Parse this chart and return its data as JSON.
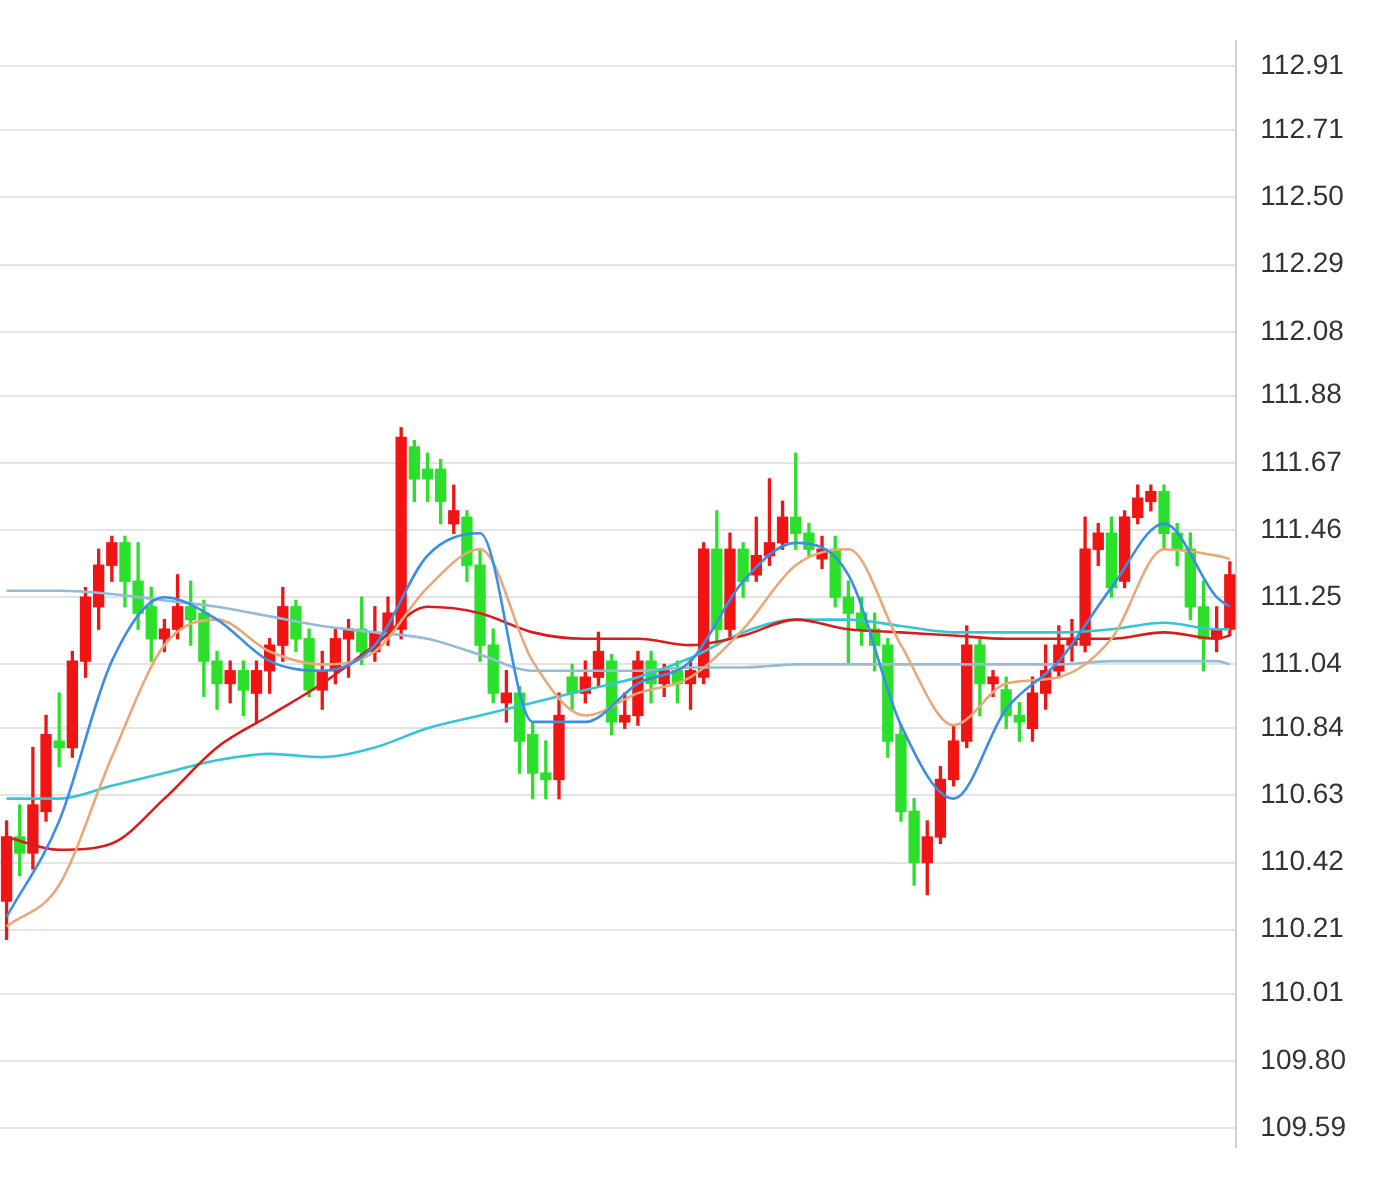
{
  "chart_data": {
    "type": "candlestick",
    "categories": [
      null,
      null,
      null,
      null,
      null,
      null,
      null,
      null,
      null,
      null,
      null,
      null,
      null,
      null,
      null,
      null,
      null,
      null,
      null,
      null,
      null,
      null,
      null,
      null,
      null,
      null,
      null,
      null,
      null,
      null,
      null,
      null,
      null,
      null,
      null,
      null,
      null,
      null,
      null,
      null,
      null,
      null,
      null,
      null,
      null,
      null,
      null,
      null,
      null,
      null,
      null,
      null,
      null,
      null,
      null,
      null,
      null,
      null,
      null,
      null,
      null,
      null,
      null,
      null,
      null,
      null,
      null,
      null,
      null,
      null,
      null,
      null,
      null,
      null,
      null,
      null,
      null,
      null,
      null,
      null,
      null,
      null,
      null,
      null,
      null,
      null,
      null,
      null,
      null,
      null,
      null,
      null,
      null,
      null
    ],
    "ohlc": [
      [
        110.3,
        110.55,
        110.18,
        110.5
      ],
      [
        110.5,
        110.6,
        110.38,
        110.45
      ],
      [
        110.45,
        110.78,
        110.4,
        110.6
      ],
      [
        110.58,
        110.88,
        110.55,
        110.82
      ],
      [
        110.8,
        110.95,
        110.72,
        110.78
      ],
      [
        110.78,
        111.08,
        110.75,
        111.05
      ],
      [
        111.05,
        111.28,
        111.0,
        111.25
      ],
      [
        111.22,
        111.4,
        111.15,
        111.35
      ],
      [
        111.35,
        111.44,
        111.3,
        111.42
      ],
      [
        111.42,
        111.44,
        111.22,
        111.3
      ],
      [
        111.3,
        111.42,
        111.15,
        111.2
      ],
      [
        111.22,
        111.28,
        111.05,
        111.12
      ],
      [
        111.12,
        111.18,
        111.08,
        111.15
      ],
      [
        111.15,
        111.32,
        111.12,
        111.22
      ],
      [
        111.22,
        111.3,
        111.1,
        111.18
      ],
      [
        111.2,
        111.24,
        110.94,
        111.05
      ],
      [
        111.05,
        111.08,
        110.9,
        110.98
      ],
      [
        110.98,
        111.05,
        110.92,
        111.02
      ],
      [
        111.02,
        111.05,
        110.88,
        110.96
      ],
      [
        110.95,
        111.05,
        110.86,
        111.02
      ],
      [
        111.02,
        111.12,
        110.95,
        111.1
      ],
      [
        111.1,
        111.28,
        111.05,
        111.22
      ],
      [
        111.22,
        111.24,
        111.08,
        111.12
      ],
      [
        111.12,
        111.15,
        110.94,
        110.96
      ],
      [
        110.96,
        111.08,
        110.9,
        111.02
      ],
      [
        111.02,
        111.15,
        110.98,
        111.12
      ],
      [
        111.12,
        111.18,
        111.0,
        111.15
      ],
      [
        111.15,
        111.25,
        111.04,
        111.08
      ],
      [
        111.08,
        111.22,
        111.05,
        111.14
      ],
      [
        111.14,
        111.25,
        111.1,
        111.2
      ],
      [
        111.15,
        111.78,
        111.12,
        111.75
      ],
      [
        111.72,
        111.74,
        111.55,
        111.62
      ],
      [
        111.65,
        111.7,
        111.55,
        111.62
      ],
      [
        111.65,
        111.68,
        111.48,
        111.55
      ],
      [
        111.48,
        111.6,
        111.45,
        111.52
      ],
      [
        111.5,
        111.52,
        111.3,
        111.35
      ],
      [
        111.35,
        111.4,
        111.05,
        111.1
      ],
      [
        111.1,
        111.15,
        110.92,
        110.95
      ],
      [
        110.92,
        111.02,
        110.86,
        110.95
      ],
      [
        110.95,
        110.97,
        110.7,
        110.8
      ],
      [
        110.82,
        110.86,
        110.62,
        110.7
      ],
      [
        110.7,
        110.8,
        110.62,
        110.68
      ],
      [
        110.68,
        110.95,
        110.62,
        110.88
      ],
      [
        111.0,
        111.04,
        110.9,
        110.95
      ],
      [
        110.95,
        111.05,
        110.92,
        111.0
      ],
      [
        111.0,
        111.14,
        110.97,
        111.08
      ],
      [
        111.05,
        111.07,
        110.82,
        110.86
      ],
      [
        110.86,
        110.95,
        110.84,
        110.88
      ],
      [
        110.88,
        111.08,
        110.85,
        111.05
      ],
      [
        111.05,
        111.08,
        110.92,
        110.98
      ],
      [
        110.98,
        111.04,
        110.94,
        111.02
      ],
      [
        111.02,
        111.05,
        110.92,
        110.98
      ],
      [
        110.98,
        111.06,
        110.9,
        111.02
      ],
      [
        111.0,
        111.42,
        110.98,
        111.4
      ],
      [
        111.4,
        111.52,
        111.1,
        111.15
      ],
      [
        111.15,
        111.45,
        111.12,
        111.4
      ],
      [
        111.4,
        111.42,
        111.25,
        111.3
      ],
      [
        111.32,
        111.5,
        111.3,
        111.38
      ],
      [
        111.38,
        111.62,
        111.35,
        111.42
      ],
      [
        111.42,
        111.55,
        111.4,
        111.5
      ],
      [
        111.5,
        111.7,
        111.4,
        111.45
      ],
      [
        111.45,
        111.48,
        111.38,
        111.4
      ],
      [
        111.37,
        111.44,
        111.34,
        111.4
      ],
      [
        111.4,
        111.44,
        111.22,
        111.25
      ],
      [
        111.25,
        111.3,
        111.04,
        111.2
      ],
      [
        111.2,
        111.25,
        111.1,
        111.15
      ],
      [
        111.15,
        111.2,
        111.02,
        111.1
      ],
      [
        111.1,
        111.12,
        110.75,
        110.8
      ],
      [
        110.82,
        110.85,
        110.55,
        110.58
      ],
      [
        110.58,
        110.62,
        110.35,
        110.42
      ],
      [
        110.42,
        110.55,
        110.32,
        110.5
      ],
      [
        110.5,
        110.72,
        110.48,
        110.68
      ],
      [
        110.68,
        110.85,
        110.66,
        110.8
      ],
      [
        110.8,
        111.16,
        110.78,
        111.1
      ],
      [
        111.1,
        111.12,
        110.88,
        110.98
      ],
      [
        110.98,
        111.02,
        110.94,
        111.0
      ],
      [
        110.96,
        111.0,
        110.84,
        110.88
      ],
      [
        110.88,
        110.92,
        110.8,
        110.86
      ],
      [
        110.84,
        111.0,
        110.8,
        110.95
      ],
      [
        110.95,
        111.1,
        110.9,
        111.02
      ],
      [
        111.02,
        111.16,
        111.0,
        111.1
      ],
      [
        111.1,
        111.18,
        111.05,
        111.12
      ],
      [
        111.1,
        111.5,
        111.08,
        111.4
      ],
      [
        111.4,
        111.48,
        111.35,
        111.45
      ],
      [
        111.45,
        111.5,
        111.25,
        111.28
      ],
      [
        111.3,
        111.52,
        111.28,
        111.5
      ],
      [
        111.5,
        111.6,
        111.48,
        111.56
      ],
      [
        111.55,
        111.6,
        111.52,
        111.58
      ],
      [
        111.58,
        111.6,
        111.4,
        111.45
      ],
      [
        111.45,
        111.48,
        111.35,
        111.4
      ],
      [
        111.4,
        111.45,
        111.18,
        111.22
      ],
      [
        111.22,
        111.3,
        111.02,
        111.12
      ],
      [
        111.12,
        111.22,
        111.08,
        111.15
      ],
      [
        111.15,
        111.36,
        111.13,
        111.32
      ]
    ],
    "colors": [
      "#f01414",
      "#2be02b",
      "#f01414",
      "#f01414",
      "#2be02b",
      "#f01414",
      "#f01414",
      "#f01414",
      "#f01414",
      "#2be02b",
      "#2be02b",
      "#2be02b",
      "#f01414",
      "#f01414",
      "#2be02b",
      "#2be02b",
      "#2be02b",
      "#f01414",
      "#2be02b",
      "#f01414",
      "#f01414",
      "#f01414",
      "#2be02b",
      "#2be02b",
      "#f01414",
      "#f01414",
      "#f01414",
      "#2be02b",
      "#f01414",
      "#f01414",
      "#f01414",
      "#2be02b",
      "#2be02b",
      "#2be02b",
      "#f01414",
      "#2be02b",
      "#2be02b",
      "#2be02b",
      "#f01414",
      "#2be02b",
      "#2be02b",
      "#2be02b",
      "#f01414",
      "#2be02b",
      "#f01414",
      "#f01414",
      "#2be02b",
      "#f01414",
      "#f01414",
      "#2be02b",
      "#f01414",
      "#2be02b",
      "#f01414",
      "#f01414",
      "#2be02b",
      "#f01414",
      "#2be02b",
      "#f01414",
      "#f01414",
      "#f01414",
      "#2be02b",
      "#2be02b",
      "#f01414",
      "#2be02b",
      "#2be02b",
      "#2be02b",
      "#2be02b",
      "#2be02b",
      "#2be02b",
      "#2be02b",
      "#f01414",
      "#f01414",
      "#f01414",
      "#f01414",
      "#2be02b",
      "#f01414",
      "#2be02b",
      "#2be02b",
      "#f01414",
      "#f01414",
      "#f01414",
      "#f01414",
      "#f01414",
      "#f01414",
      "#2be02b",
      "#f01414",
      "#f01414",
      "#f01414",
      "#2be02b",
      "#2be02b",
      "#2be02b",
      "#2be02b",
      "#f01414",
      "#f01414"
    ],
    "series": [
      {
        "type": "line",
        "color": "#3a8ee6",
        "values": [
          110.25,
          null,
          null,
          null,
          110.55,
          null,
          null,
          null,
          111.05,
          null,
          null,
          null,
          111.25,
          null,
          null,
          null,
          111.18,
          null,
          null,
          null,
          111.05,
          null,
          null,
          null,
          111.02,
          null,
          null,
          null,
          111.1,
          null,
          null,
          null,
          111.38,
          null,
          null,
          null,
          111.45,
          null,
          null,
          null,
          110.86,
          null,
          null,
          null,
          110.86,
          null,
          null,
          null,
          110.98,
          null,
          null,
          null,
          111.05,
          null,
          null,
          null,
          111.3,
          null,
          null,
          null,
          111.42,
          null,
          null,
          null,
          111.32,
          null,
          null,
          null,
          110.85,
          null,
          null,
          null,
          110.62,
          null,
          null,
          null,
          110.9,
          null,
          null,
          null,
          111.05,
          null,
          null,
          null,
          111.28,
          null,
          null,
          null,
          111.48,
          null,
          null,
          null,
          111.25,
          111.22
        ]
      },
      {
        "type": "line",
        "color": "#e8a878",
        "values": [
          110.22,
          null,
          null,
          null,
          110.35,
          null,
          null,
          null,
          110.75,
          null,
          null,
          null,
          111.1,
          null,
          null,
          null,
          111.18,
          null,
          null,
          null,
          111.08,
          null,
          null,
          null,
          111.04,
          null,
          null,
          null,
          111.08,
          null,
          null,
          null,
          111.28,
          null,
          null,
          null,
          111.4,
          null,
          null,
          null,
          111.05,
          null,
          null,
          null,
          110.88,
          null,
          null,
          null,
          110.95,
          null,
          null,
          null,
          111.0,
          null,
          null,
          null,
          111.15,
          null,
          null,
          null,
          111.35,
          null,
          null,
          null,
          111.4,
          null,
          null,
          null,
          111.1,
          null,
          null,
          null,
          110.85,
          null,
          null,
          null,
          110.98,
          null,
          null,
          null,
          111.0,
          null,
          null,
          null,
          111.12,
          null,
          null,
          null,
          111.4,
          null,
          null,
          null,
          111.38,
          111.37
        ]
      },
      {
        "type": "line",
        "color": "#d61e1e",
        "values": [
          110.5,
          null,
          null,
          null,
          110.46,
          null,
          null,
          null,
          110.48,
          null,
          null,
          null,
          110.62,
          null,
          null,
          null,
          110.78,
          null,
          null,
          null,
          110.88,
          null,
          null,
          null,
          110.98,
          null,
          null,
          null,
          111.1,
          null,
          null,
          null,
          111.22,
          null,
          null,
          null,
          111.2,
          null,
          null,
          null,
          111.14,
          null,
          null,
          null,
          111.12,
          null,
          null,
          null,
          111.12,
          null,
          null,
          null,
          111.1,
          null,
          null,
          null,
          111.13,
          null,
          null,
          null,
          111.18,
          null,
          null,
          null,
          111.15,
          null,
          null,
          null,
          111.14,
          null,
          null,
          null,
          111.13,
          null,
          null,
          null,
          111.12,
          null,
          null,
          null,
          111.12,
          null,
          null,
          null,
          111.12,
          null,
          null,
          null,
          111.14,
          null,
          null,
          null,
          111.12,
          111.13
        ]
      },
      {
        "type": "line",
        "color": "#36c6d3",
        "values": [
          110.62,
          null,
          null,
          null,
          110.62,
          null,
          null,
          null,
          110.66,
          null,
          null,
          null,
          110.7,
          null,
          null,
          null,
          110.74,
          null,
          null,
          null,
          110.76,
          null,
          null,
          null,
          110.75,
          null,
          null,
          null,
          110.78,
          null,
          null,
          null,
          110.84,
          null,
          null,
          null,
          110.88,
          null,
          null,
          null,
          110.92,
          null,
          null,
          null,
          110.96,
          null,
          null,
          null,
          111.0,
          null,
          null,
          null,
          111.06,
          null,
          null,
          null,
          111.14,
          null,
          null,
          null,
          111.18,
          null,
          null,
          null,
          111.18,
          null,
          null,
          null,
          111.16,
          null,
          null,
          null,
          111.14,
          null,
          null,
          null,
          111.14,
          null,
          null,
          null,
          111.14,
          null,
          null,
          null,
          111.15,
          null,
          null,
          null,
          111.17,
          null,
          null,
          null,
          111.15,
          111.15
        ]
      },
      {
        "type": "line",
        "color": "#94bcd4",
        "values": [
          111.27,
          null,
          null,
          null,
          111.27,
          null,
          null,
          null,
          111.26,
          null,
          null,
          null,
          111.24,
          null,
          null,
          null,
          111.22,
          null,
          null,
          null,
          111.19,
          null,
          null,
          null,
          111.16,
          null,
          null,
          null,
          111.14,
          null,
          null,
          null,
          111.12,
          null,
          null,
          null,
          111.07,
          null,
          null,
          null,
          111.02,
          null,
          null,
          null,
          111.02,
          null,
          null,
          null,
          111.02,
          null,
          null,
          null,
          111.03,
          null,
          null,
          null,
          111.03,
          null,
          null,
          null,
          111.04,
          null,
          null,
          null,
          111.04,
          null,
          null,
          null,
          111.04,
          null,
          null,
          null,
          111.04,
          null,
          null,
          null,
          111.04,
          null,
          null,
          null,
          111.04,
          null,
          null,
          null,
          111.05,
          null,
          null,
          null,
          111.05,
          null,
          null,
          null,
          111.05,
          111.04
        ]
      }
    ],
    "ylim": [
      109.53,
      112.99
    ],
    "yticks": [
      109.59,
      {
        "value": 109.8,
        "label": "109.80"
      },
      110.01,
      110.21,
      110.42,
      110.63,
      110.84,
      111.04,
      111.25,
      111.46,
      111.67,
      111.88,
      112.08,
      112.29,
      {
        "value": 112.5,
        "label": "112.50"
      },
      112.71,
      112.91
    ],
    "grid": "y",
    "legend": false,
    "tick_labels": "y"
  }
}
